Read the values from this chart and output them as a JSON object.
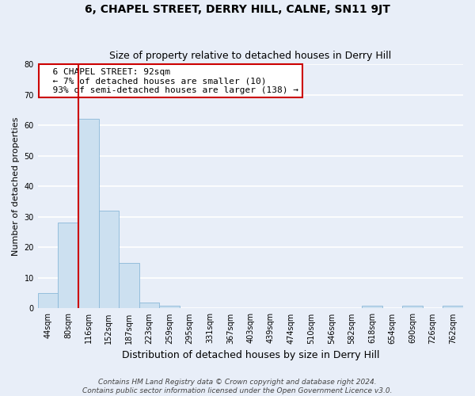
{
  "title": "6, CHAPEL STREET, DERRY HILL, CALNE, SN11 9JT",
  "subtitle": "Size of property relative to detached houses in Derry Hill",
  "xlabel": "Distribution of detached houses by size in Derry Hill",
  "ylabel": "Number of detached properties",
  "bin_labels": [
    "44sqm",
    "80sqm",
    "116sqm",
    "152sqm",
    "187sqm",
    "223sqm",
    "259sqm",
    "295sqm",
    "331sqm",
    "367sqm",
    "403sqm",
    "439sqm",
    "474sqm",
    "510sqm",
    "546sqm",
    "582sqm",
    "618sqm",
    "654sqm",
    "690sqm",
    "726sqm",
    "762sqm"
  ],
  "bar_heights": [
    5,
    28,
    62,
    32,
    15,
    2,
    1,
    0,
    0,
    0,
    0,
    0,
    0,
    0,
    0,
    0,
    1,
    0,
    1,
    0,
    1
  ],
  "bar_color": "#cce0f0",
  "bar_edge_color": "#8ab8d8",
  "ylim": [
    0,
    80
  ],
  "yticks": [
    0,
    10,
    20,
    30,
    40,
    50,
    60,
    70,
    80
  ],
  "property_line_x": 1.5,
  "annotation_title": "6 CHAPEL STREET: 92sqm",
  "annotation_line1": "← 7% of detached houses are smaller (10)",
  "annotation_line2": "93% of semi-detached houses are larger (138) →",
  "footnote1": "Contains HM Land Registry data © Crown copyright and database right 2024.",
  "footnote2": "Contains public sector information licensed under the Open Government Licence v3.0.",
  "bg_color": "#e8eef8",
  "grid_color": "#ffffff",
  "annotation_box_color": "#ffffff",
  "annotation_box_edge": "#cc0000",
  "property_line_color": "#cc0000",
  "title_fontsize": 10,
  "subtitle_fontsize": 9,
  "ylabel_fontsize": 8,
  "xlabel_fontsize": 9,
  "tick_fontsize": 7,
  "annotation_fontsize": 8,
  "footnote_fontsize": 6.5
}
